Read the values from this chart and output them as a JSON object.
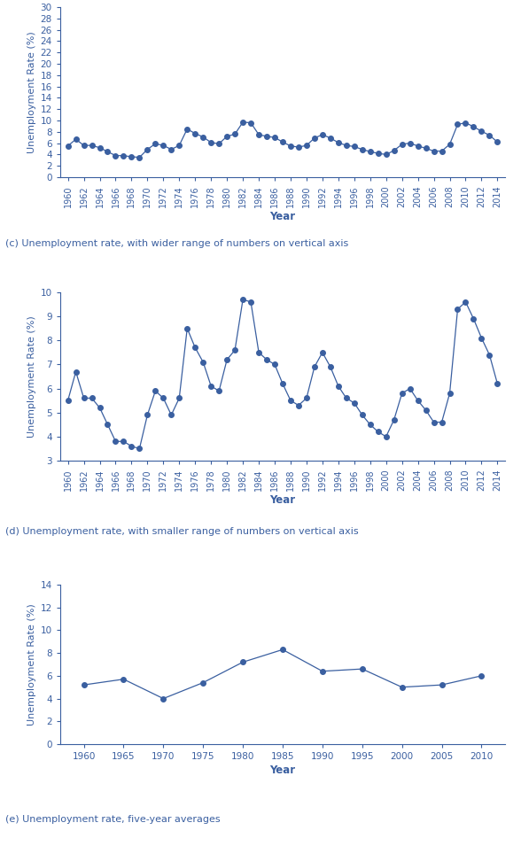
{
  "color": "#3a5fa0",
  "background": "#ffffff",
  "ylabel": "Unemployment Rate (%)",
  "xlabel": "Year",
  "years_annual": [
    1960,
    1961,
    1962,
    1963,
    1964,
    1965,
    1966,
    1967,
    1968,
    1969,
    1970,
    1971,
    1972,
    1973,
    1974,
    1975,
    1976,
    1977,
    1978,
    1979,
    1980,
    1981,
    1982,
    1983,
    1984,
    1985,
    1986,
    1987,
    1988,
    1989,
    1990,
    1991,
    1992,
    1993,
    1994,
    1995,
    1996,
    1997,
    1998,
    1999,
    2000,
    2001,
    2002,
    2003,
    2004,
    2005,
    2006,
    2007,
    2008,
    2009,
    2010,
    2011,
    2012,
    2013,
    2014
  ],
  "values_annual": [
    5.5,
    6.7,
    5.6,
    5.6,
    5.2,
    4.5,
    3.8,
    3.8,
    3.6,
    3.5,
    4.9,
    5.9,
    5.6,
    4.9,
    5.6,
    8.5,
    7.7,
    7.1,
    6.1,
    5.9,
    7.2,
    7.6,
    9.7,
    9.6,
    7.5,
    7.2,
    7.0,
    6.2,
    5.5,
    5.3,
    5.6,
    6.9,
    7.5,
    6.9,
    6.1,
    5.6,
    5.4,
    4.9,
    4.5,
    4.2,
    4.0,
    4.7,
    5.8,
    6.0,
    5.5,
    5.1,
    4.6,
    4.6,
    5.8,
    9.3,
    9.6,
    8.9,
    8.1,
    7.4,
    6.2
  ],
  "chart_c": {
    "ylim": [
      0,
      30
    ],
    "yticks": [
      0,
      2,
      4,
      6,
      8,
      10,
      12,
      14,
      16,
      18,
      20,
      22,
      24,
      26,
      28,
      30
    ],
    "xticks": [
      1960,
      1962,
      1964,
      1966,
      1968,
      1970,
      1972,
      1974,
      1976,
      1978,
      1980,
      1982,
      1984,
      1986,
      1988,
      1990,
      1992,
      1994,
      1996,
      1998,
      2000,
      2002,
      2004,
      2006,
      2008,
      2010,
      2012,
      2014
    ],
    "caption": "(c) Unemployment rate, with wider range of numbers on vertical axis"
  },
  "chart_d": {
    "ylim": [
      3,
      10
    ],
    "yticks": [
      3,
      4,
      5,
      6,
      7,
      8,
      9,
      10
    ],
    "xticks": [
      1960,
      1962,
      1964,
      1966,
      1968,
      1970,
      1972,
      1974,
      1976,
      1978,
      1980,
      1982,
      1984,
      1986,
      1988,
      1990,
      1992,
      1994,
      1996,
      1998,
      2000,
      2002,
      2004,
      2006,
      2008,
      2010,
      2012,
      2014
    ],
    "caption": "(d) Unemployment rate, with smaller range of numbers on vertical axis"
  },
  "years_5yr": [
    1960,
    1965,
    1970,
    1975,
    1980,
    1985,
    1990,
    1995,
    2000,
    2005,
    2010
  ],
  "values_5yr": [
    5.2,
    5.7,
    4.0,
    5.4,
    7.2,
    8.3,
    6.4,
    6.6,
    5.0,
    5.2,
    6.0
  ],
  "chart_e": {
    "ylim": [
      0,
      14
    ],
    "yticks": [
      0,
      2,
      4,
      6,
      8,
      10,
      12,
      14
    ],
    "xticks": [
      1960,
      1965,
      1970,
      1975,
      1980,
      1985,
      1990,
      1995,
      2000,
      2005,
      2010
    ],
    "caption": "(e) Unemployment rate, five-year averages"
  }
}
